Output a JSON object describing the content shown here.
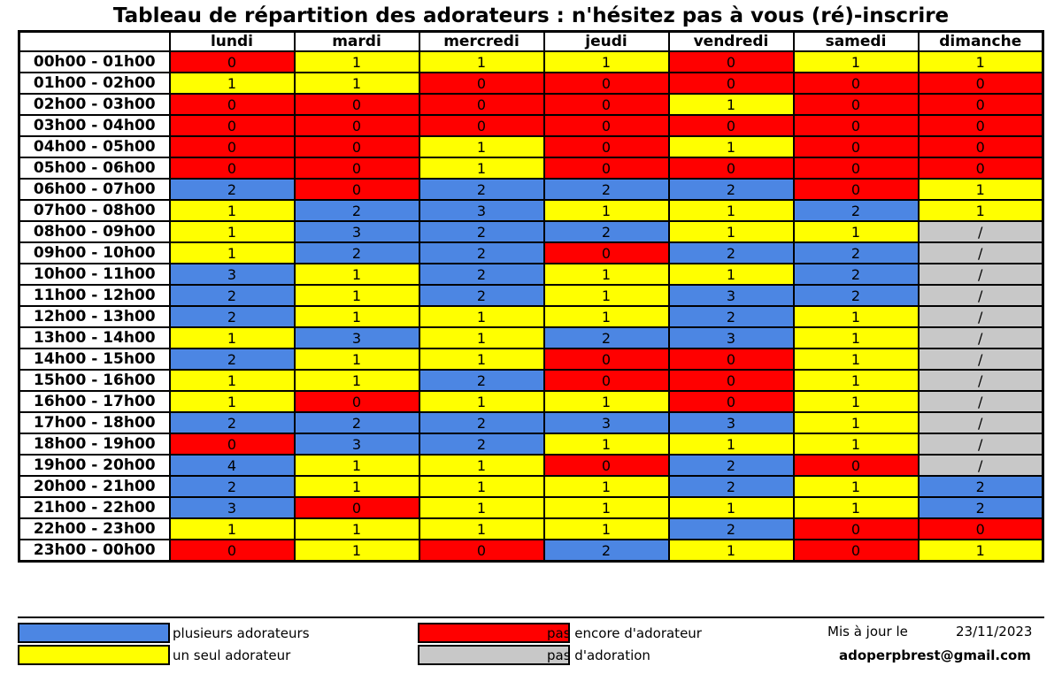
{
  "title": "Tableau de répartition des adorateurs : n'hésitez pas à vous (ré)-inscrire",
  "days": [
    "lundi",
    "mardi",
    "mercredi",
    "jeudi",
    "vendredi",
    "samedi",
    "dimanche"
  ],
  "colors": {
    "blue": "#4c86e3",
    "yellow": "#ffff00",
    "red": "#ff0000",
    "grey": "#c8c8c8"
  },
  "slots": [
    {
      "label": "00h00 - 01h00",
      "values": [
        "0",
        "1",
        "1",
        "1",
        "0",
        "1",
        "1"
      ]
    },
    {
      "label": "01h00 - 02h00",
      "values": [
        "1",
        "1",
        "0",
        "0",
        "0",
        "0",
        "0"
      ]
    },
    {
      "label": "02h00 - 03h00",
      "values": [
        "0",
        "0",
        "0",
        "0",
        "1",
        "0",
        "0"
      ]
    },
    {
      "label": "03h00 - 04h00",
      "values": [
        "0",
        "0",
        "0",
        "0",
        "0",
        "0",
        "0"
      ]
    },
    {
      "label": "04h00 - 05h00",
      "values": [
        "0",
        "0",
        "1",
        "0",
        "1",
        "0",
        "0"
      ]
    },
    {
      "label": "05h00 - 06h00",
      "values": [
        "0",
        "0",
        "1",
        "0",
        "0",
        "0",
        "0"
      ]
    },
    {
      "label": "06h00 - 07h00",
      "values": [
        "2",
        "0",
        "2",
        "2",
        "2",
        "0",
        "1"
      ]
    },
    {
      "label": "07h00 - 08h00",
      "values": [
        "1",
        "2",
        "3",
        "1",
        "1",
        "2",
        "1"
      ]
    },
    {
      "label": "08h00 - 09h00",
      "values": [
        "1",
        "3",
        "2",
        "2",
        "1",
        "1",
        "/"
      ]
    },
    {
      "label": "09h00 - 10h00",
      "values": [
        "1",
        "2",
        "2",
        "0",
        "2",
        "2",
        "/"
      ]
    },
    {
      "label": "10h00 - 11h00",
      "values": [
        "3",
        "1",
        "2",
        "1",
        "1",
        "2",
        "/"
      ]
    },
    {
      "label": "11h00 - 12h00",
      "values": [
        "2",
        "1",
        "2",
        "1",
        "3",
        "2",
        "/"
      ]
    },
    {
      "label": "12h00 - 13h00",
      "values": [
        "2",
        "1",
        "1",
        "1",
        "2",
        "1",
        "/"
      ]
    },
    {
      "label": "13h00 - 14h00",
      "values": [
        "1",
        "3",
        "1",
        "2",
        "3",
        "1",
        "/"
      ]
    },
    {
      "label": "14h00 - 15h00",
      "values": [
        "2",
        "1",
        "1",
        "0",
        "0",
        "1",
        "/"
      ]
    },
    {
      "label": "15h00 - 16h00",
      "values": [
        "1",
        "1",
        "2",
        "0",
        "0",
        "1",
        "/"
      ]
    },
    {
      "label": "16h00 - 17h00",
      "values": [
        "1",
        "0",
        "1",
        "1",
        "0",
        "1",
        "/"
      ]
    },
    {
      "label": "17h00 - 18h00",
      "values": [
        "2",
        "2",
        "2",
        "3",
        "3",
        "1",
        "/"
      ]
    },
    {
      "label": "18h00 - 19h00",
      "values": [
        "0",
        "3",
        "2",
        "1",
        "1",
        "1",
        "/"
      ]
    },
    {
      "label": "19h00 - 20h00",
      "values": [
        "4",
        "1",
        "1",
        "0",
        "2",
        "0",
        "/"
      ]
    },
    {
      "label": "20h00 - 21h00",
      "values": [
        "2",
        "1",
        "1",
        "1",
        "2",
        "1",
        "2"
      ]
    },
    {
      "label": "21h00 - 22h00",
      "values": [
        "3",
        "0",
        "1",
        "1",
        "1",
        "1",
        "2"
      ]
    },
    {
      "label": "22h00 - 23h00",
      "values": [
        "1",
        "1",
        "1",
        "1",
        "2",
        "0",
        "0"
      ]
    },
    {
      "label": "23h00 - 00h00",
      "values": [
        "0",
        "1",
        "0",
        "2",
        "1",
        "0",
        "1"
      ]
    }
  ],
  "legend": {
    "many": "plusieurs adorateurs",
    "one": "un seul adorateur",
    "none_yet": "pas encore d'adorateur",
    "no_adoration": "pas d'adoration"
  },
  "footer": {
    "updated_label": "Mis à jour le",
    "updated_date": "23/11/2023",
    "email": "adoperpbrest@gmail.com"
  }
}
